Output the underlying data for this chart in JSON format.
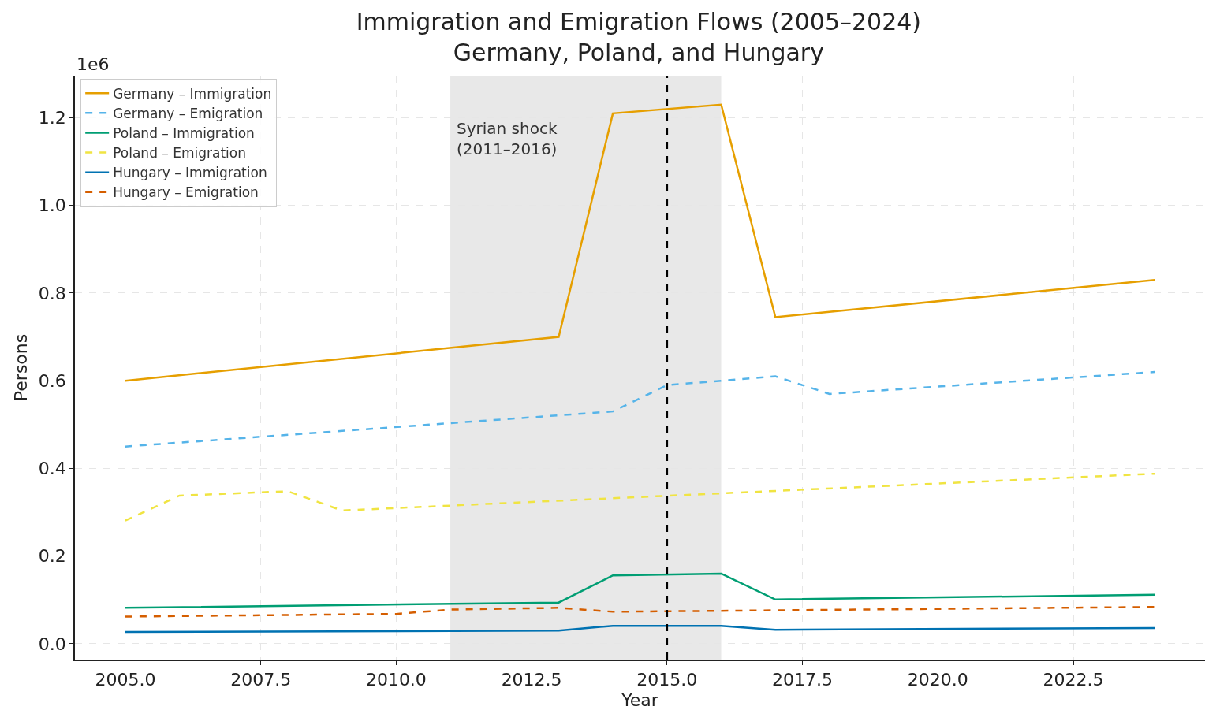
{
  "chart_data": {
    "type": "line",
    "title": "Immigration and Emigration Flows (2005–2024)\nGermany, Poland, and Hungary",
    "xlabel": "Year",
    "ylabel": "Persons",
    "annotations": [
      "1e6",
      {
        "text": "Syrian shock\n(2011–2016)",
        "x": 2011,
        "y": 1.2
      }
    ],
    "series": [
      {
        "name": "Germany – Immigration",
        "color": "#e69f00",
        "line_style": "solid",
        "x": [
          2005,
          2013,
          2014,
          2016,
          2017,
          2024
        ],
        "values": [
          0.6,
          0.7,
          1.21,
          1.23,
          0.745,
          0.83
        ]
      },
      {
        "name": "Germany – Emigration",
        "color": "#56b4e9",
        "line_style": "dashed",
        "x": [
          2005,
          2014,
          2015,
          2017,
          2018,
          2024
        ],
        "values": [
          0.45,
          0.53,
          0.59,
          0.61,
          0.57,
          0.62
        ]
      },
      {
        "name": "Poland – Immigration",
        "color": "#009e73",
        "line_style": "solid",
        "x": [
          2005,
          2013,
          2014,
          2016,
          2017,
          2024
        ],
        "values": [
          0.082,
          0.094,
          0.156,
          0.16,
          0.101,
          0.112
        ]
      },
      {
        "name": "Poland – Emigration",
        "color": "#f0e442",
        "line_style": "dashed",
        "x": [
          2005,
          2006,
          2008,
          2009,
          2024
        ],
        "values": [
          0.281,
          0.338,
          0.348,
          0.304,
          0.388
        ]
      },
      {
        "name": "Hungary – Immigration",
        "color": "#0072b2",
        "line_style": "solid",
        "x": [
          2005,
          2013,
          2014,
          2016,
          2017,
          2024
        ],
        "values": [
          0.027,
          0.03,
          0.041,
          0.041,
          0.032,
          0.036
        ]
      },
      {
        "name": "Hungary – Emigration",
        "color": "#d55e00",
        "line_style": "dashed",
        "x": [
          2005,
          2010,
          2011,
          2013,
          2014,
          2024
        ],
        "values": [
          0.062,
          0.068,
          0.078,
          0.082,
          0.073,
          0.084
        ]
      }
    ],
    "bands": [
      {
        "axis": "x",
        "from": 2011,
        "to": 2016,
        "color": "#d9d9d9"
      }
    ],
    "ref_lines": [
      {
        "axis": "x",
        "value": 2015,
        "color": "#000000",
        "line_style": "dashed"
      }
    ],
    "xlim": [
      2004.07,
      2024.93
    ],
    "ylim": [
      -0.036,
      1.296
    ],
    "xticks": [
      {
        "value": 2005,
        "label": "2005.0"
      },
      {
        "value": 2007.5,
        "label": "2007.5"
      },
      {
        "value": 2010,
        "label": "2010.0"
      },
      {
        "value": 2012.5,
        "label": "2012.5"
      },
      {
        "value": 2015,
        "label": "2015.0"
      },
      {
        "value": 2017.5,
        "label": "2017.5"
      },
      {
        "value": 2020,
        "label": "2020.0"
      },
      {
        "value": 2022.5,
        "label": "2022.5"
      }
    ],
    "yticks": [
      {
        "value": 0,
        "label": "0.0"
      },
      0.2,
      0.4,
      0.6,
      0.8,
      {
        "value": 1,
        "label": "1.0"
      },
      1.2
    ],
    "grid": true,
    "legend": "top left"
  }
}
